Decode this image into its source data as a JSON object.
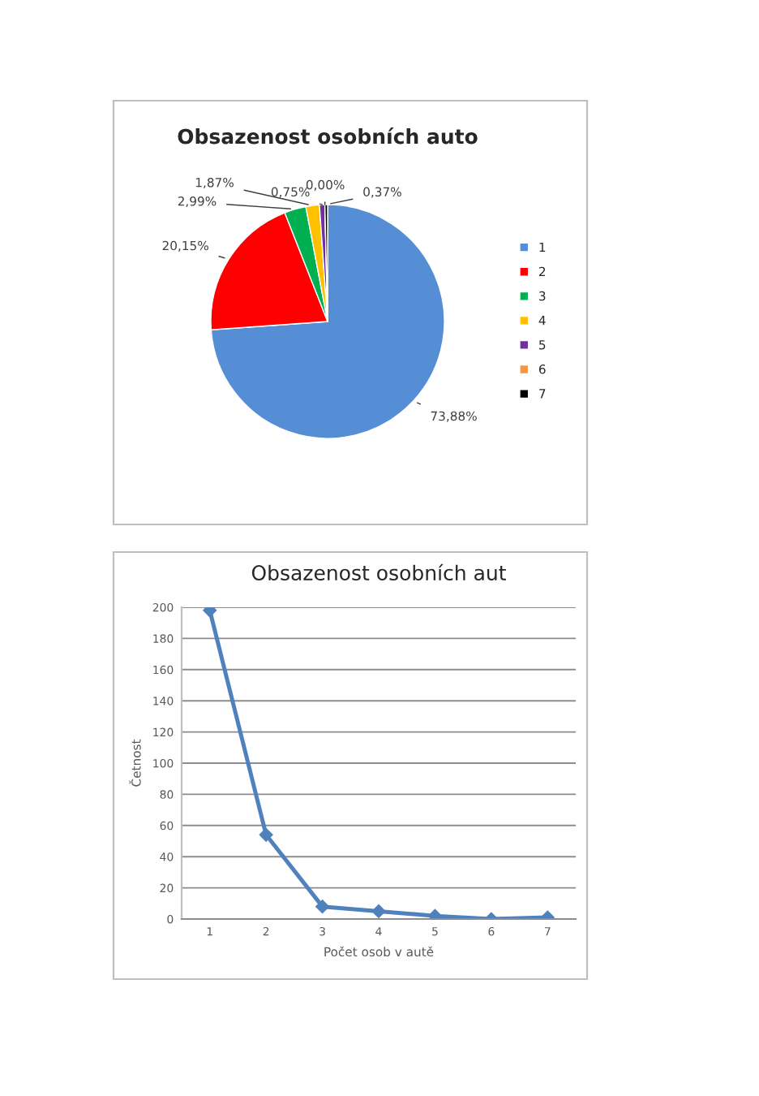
{
  "chart_data": [
    {
      "type": "pie",
      "title": "Obsazenost osobních auto",
      "categories": [
        "1",
        "2",
        "3",
        "4",
        "5",
        "6",
        "7"
      ],
      "values": [
        73.88,
        20.15,
        2.99,
        1.87,
        0.75,
        0.0,
        0.37
      ],
      "colors": [
        "#558ed5",
        "#ff0000",
        "#00b050",
        "#ffc000",
        "#7030a0",
        "#f79646",
        "#000000"
      ],
      "value_labels": [
        "73,88%",
        "20,15%",
        "2,99%",
        "1,87%",
        "0,75%",
        "0,00%",
        "0,37%"
      ],
      "legend": "right"
    },
    {
      "type": "line",
      "title": "Obsazenost osobních aut",
      "xlabel": "Počet osob v autě",
      "ylabel": "Četnost",
      "categories": [
        "1",
        "2",
        "3",
        "4",
        "5",
        "6",
        "7"
      ],
      "series": [
        {
          "color": "#4f81bd",
          "values": [
            198,
            54,
            8,
            5,
            2,
            0,
            1
          ]
        }
      ],
      "ylim": [
        0,
        200
      ],
      "yticks": [
        0,
        20,
        40,
        60,
        80,
        100,
        120,
        140,
        160,
        180,
        200
      ],
      "grid": "y",
      "marker": "diamond",
      "line_style": "solid",
      "legend": false
    }
  ]
}
